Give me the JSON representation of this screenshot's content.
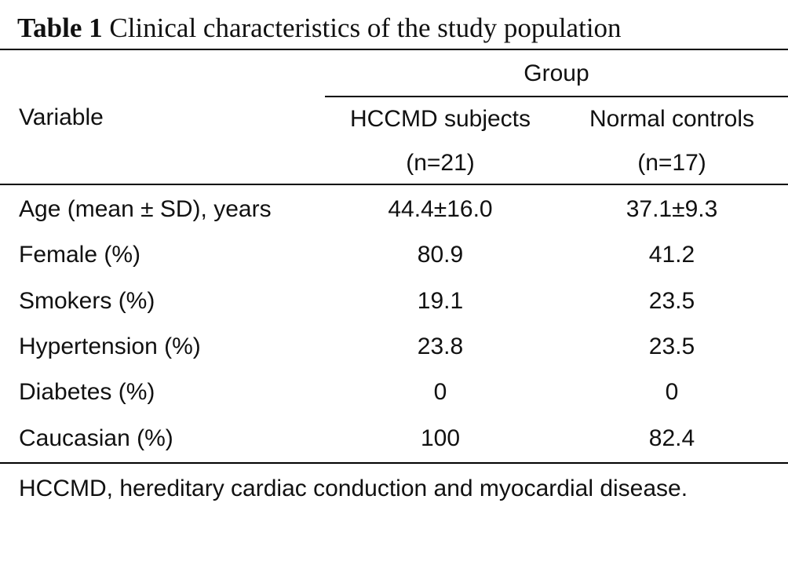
{
  "caption": {
    "label": "Table 1",
    "title": "Clinical characteristics of the study population"
  },
  "header": {
    "variable": "Variable",
    "group": "Group",
    "col1_name": "HCCMD subjects",
    "col1_n": "(n=21)",
    "col2_name": "Normal controls",
    "col2_n": "(n=17)"
  },
  "rows": [
    {
      "label": "Age (mean ± SD), years",
      "hccmd": "44.4±16.0",
      "control": "37.1±9.3"
    },
    {
      "label": "Female (%)",
      "hccmd": "80.9",
      "control": "41.2"
    },
    {
      "label": "Smokers (%)",
      "hccmd": "19.1",
      "control": "23.5"
    },
    {
      "label": "Hypertension (%)",
      "hccmd": "23.8",
      "control": "23.5"
    },
    {
      "label": "Diabetes (%)",
      "hccmd": "0",
      "control": "0"
    },
    {
      "label": "Caucasian (%)",
      "hccmd": "100",
      "control": "82.4"
    }
  ],
  "footnote": "HCCMD, hereditary cardiac conduction and myocardial disease."
}
